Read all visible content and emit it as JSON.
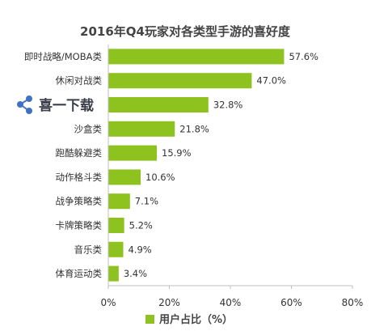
{
  "chart_data": {
    "type": "bar",
    "orientation": "horizontal",
    "title": "2016年Q4玩家对各类型手游的喜好度",
    "categories": [
      "即时战略/MOBA类",
      "休闲对战类",
      "",
      "沙盒类",
      "跑酷躲避类",
      "动作格斗类",
      "战争策略类",
      "卡牌策略类",
      "音乐类",
      "体育运动类"
    ],
    "values": [
      57.6,
      47.0,
      32.8,
      21.8,
      15.9,
      10.6,
      7.1,
      5.2,
      4.9,
      3.4
    ],
    "value_labels": [
      "57.6%",
      "47.0%",
      "32.8%",
      "21.8%",
      "15.9%",
      "10.6%",
      "7.1%",
      "5.2%",
      "4.9%",
      "3.4%"
    ],
    "xlim": [
      0,
      80
    ],
    "x_ticks": [
      0,
      20,
      40,
      60,
      80
    ],
    "x_tick_labels": [
      "0%",
      "20%",
      "40%",
      "60%",
      "80%"
    ],
    "series": [
      {
        "name": "用户占比（%）",
        "color": "#8dc21f"
      }
    ],
    "legend_position": "bottom",
    "grid": false
  },
  "watermark": {
    "text": "喜一下载"
  },
  "colors": {
    "bar": "#8dc21f",
    "axis": "#bfbfbf",
    "text": "#333333"
  }
}
